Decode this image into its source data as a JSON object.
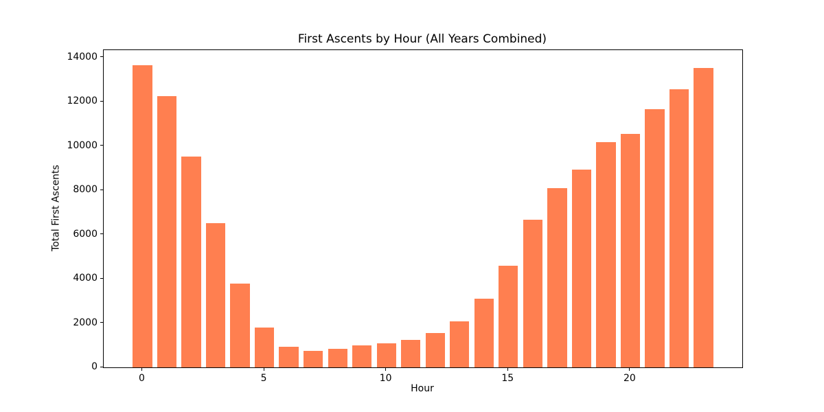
{
  "chart_data": {
    "type": "bar",
    "title": "First Ascents by Hour (All Years Combined)",
    "xlabel": "Hour",
    "ylabel": "Total First Ascents",
    "categories": [
      0,
      1,
      2,
      3,
      4,
      5,
      6,
      7,
      8,
      9,
      10,
      11,
      12,
      13,
      14,
      15,
      16,
      17,
      18,
      19,
      20,
      21,
      22,
      23
    ],
    "values": [
      13650,
      12250,
      9530,
      6520,
      3790,
      1800,
      940,
      750,
      840,
      1000,
      1100,
      1250,
      1550,
      2080,
      3110,
      4590,
      6670,
      8100,
      8940,
      10170,
      10560,
      11660,
      12550,
      13520
    ],
    "bar_color": "#FF7F50",
    "bar_width_units": 0.8,
    "xlim": [
      -1.59,
      24.59
    ],
    "ylim": [
      0,
      14330
    ],
    "yticks": [
      0,
      2000,
      4000,
      6000,
      8000,
      10000,
      12000,
      14000
    ],
    "xticks": [
      0,
      5,
      10,
      15,
      20
    ],
    "grid": false,
    "legend": null,
    "axes_color": "#000000",
    "background_color": "#ffffff"
  }
}
